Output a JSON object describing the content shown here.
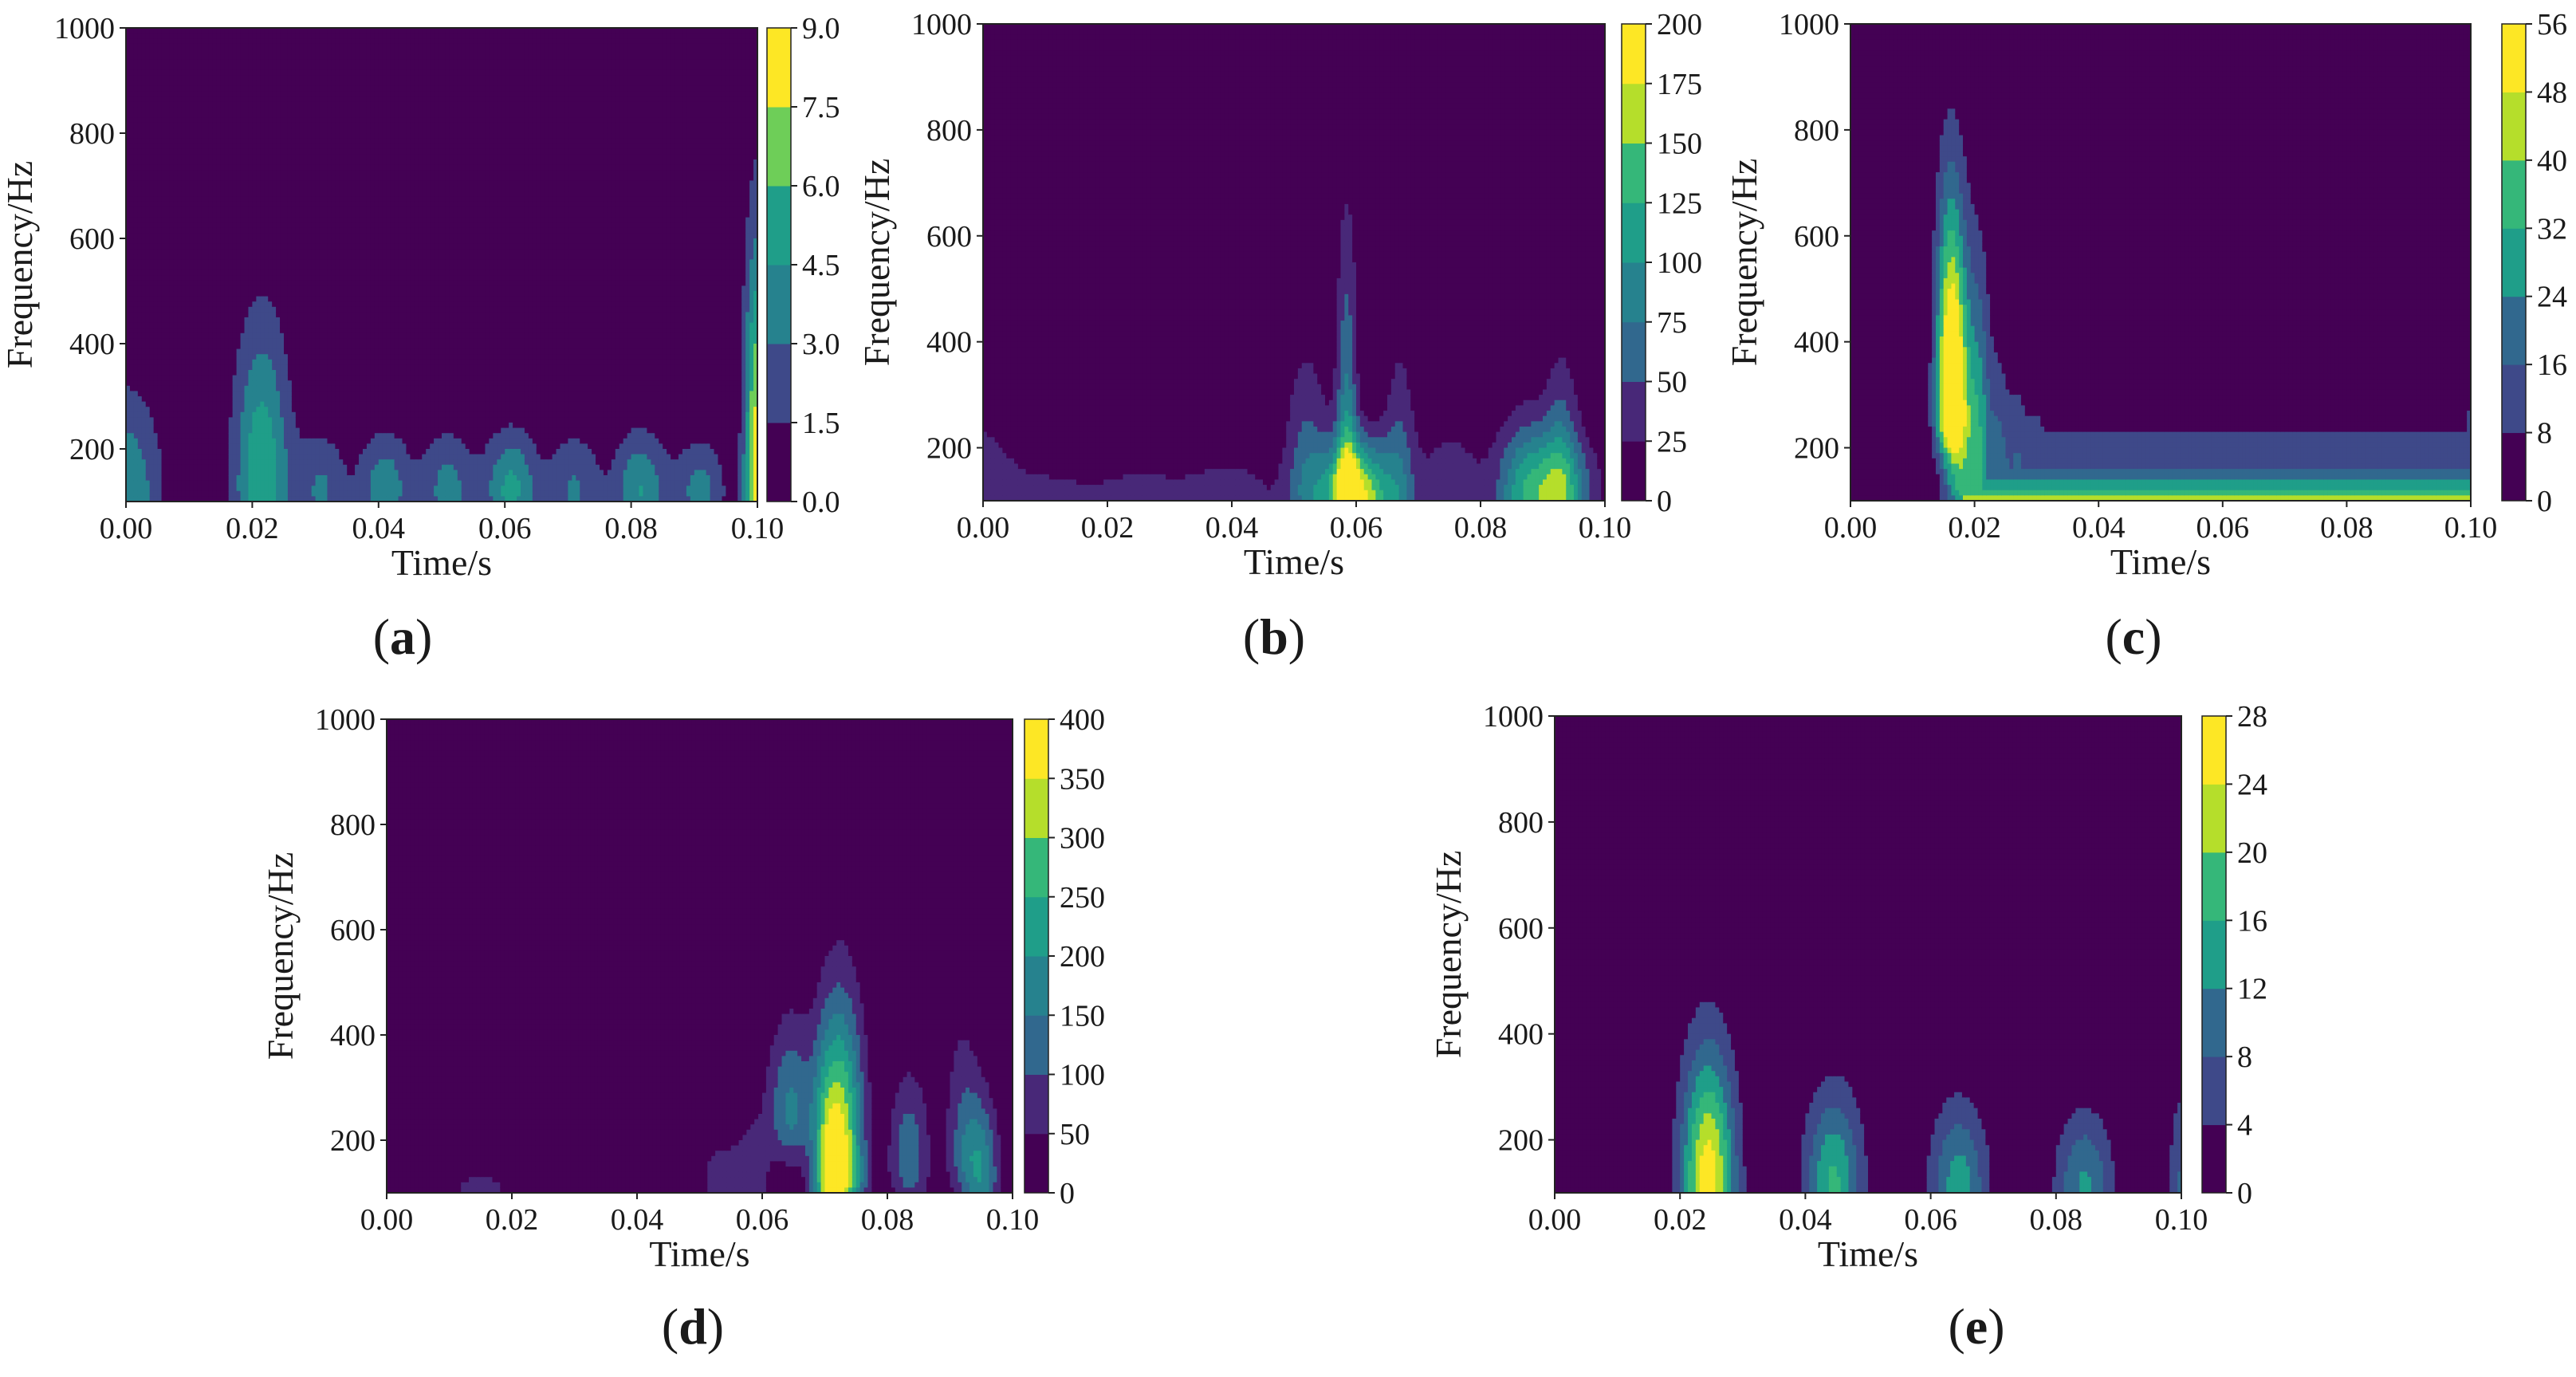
{
  "figure": {
    "panels": [
      "a",
      "b",
      "c",
      "d",
      "e"
    ]
  },
  "colormap": [
    "#440154",
    "#482878",
    "#3e4989",
    "#31688e",
    "#26828e",
    "#1f9e89",
    "#35b779",
    "#6ece58",
    "#b5de2b",
    "#fde725"
  ],
  "chart_data": [
    {
      "id": "a",
      "type": "heatmap",
      "subtype": "filled-contour time-frequency map",
      "panel_label": "a",
      "xlabel": "Time/s",
      "ylabel": "Frequency/Hz",
      "xlim": [
        0,
        0.1
      ],
      "ylim": [
        100,
        1000
      ],
      "xticks": [
        "0.00",
        "0.02",
        "0.04",
        "0.06",
        "0.08",
        "0.10"
      ],
      "yticks": [
        "200",
        "400",
        "600",
        "800",
        "1000"
      ],
      "colorbar": {
        "min": 0,
        "max": 9,
        "ticks": [
          "0.0",
          "1.5",
          "3.0",
          "4.5",
          "6.0",
          "7.5",
          "9.0"
        ],
        "levels": 6
      },
      "peaks": [
        {
          "t": 0.0,
          "f": 100,
          "w": 0.004,
          "h": 0.5,
          "ext": 480
        },
        {
          "t": 0.0215,
          "f": 130,
          "w": 0.0032,
          "h": 0.65,
          "ext": 700
        },
        {
          "t": 0.031,
          "f": 120,
          "w": 0.0028,
          "h": 0.35,
          "ext": 330
        },
        {
          "t": 0.041,
          "f": 120,
          "w": 0.003,
          "h": 0.45,
          "ext": 330
        },
        {
          "t": 0.051,
          "f": 120,
          "w": 0.003,
          "h": 0.4,
          "ext": 330
        },
        {
          "t": 0.061,
          "f": 120,
          "w": 0.003,
          "h": 0.55,
          "ext": 330
        },
        {
          "t": 0.071,
          "f": 120,
          "w": 0.003,
          "h": 0.35,
          "ext": 330
        },
        {
          "t": 0.0815,
          "f": 120,
          "w": 0.003,
          "h": 0.5,
          "ext": 330
        },
        {
          "t": 0.091,
          "f": 120,
          "w": 0.0028,
          "h": 0.4,
          "ext": 300
        },
        {
          "t": 0.1,
          "f": 120,
          "w": 0.0015,
          "h": 0.95,
          "ext": 1000
        }
      ]
    },
    {
      "id": "b",
      "type": "heatmap",
      "subtype": "filled-contour time-frequency map",
      "panel_label": "b",
      "xlabel": "Time/s",
      "ylabel": "Frequency/Hz",
      "xlim": [
        0,
        0.1
      ],
      "ylim": [
        100,
        1000
      ],
      "xticks": [
        "0.00",
        "0.02",
        "0.04",
        "0.06",
        "0.08",
        "0.10"
      ],
      "yticks": [
        "200",
        "400",
        "600",
        "800",
        "1000"
      ],
      "colorbar": {
        "min": 0,
        "max": 200,
        "ticks": [
          "0",
          "25",
          "50",
          "75",
          "100",
          "125",
          "150",
          "175",
          "200"
        ],
        "levels": 8
      },
      "peaks": [
        {
          "t": 0.0,
          "f": 120,
          "w": 0.004,
          "h": 0.2,
          "ext": 400
        },
        {
          "t": 0.01,
          "f": 110,
          "w": 0.006,
          "h": 0.15,
          "ext": 230
        },
        {
          "t": 0.025,
          "f": 110,
          "w": 0.006,
          "h": 0.15,
          "ext": 250
        },
        {
          "t": 0.04,
          "f": 110,
          "w": 0.006,
          "h": 0.18,
          "ext": 260
        },
        {
          "t": 0.052,
          "f": 120,
          "w": 0.0025,
          "h": 0.3,
          "ext": 600
        },
        {
          "t": 0.0585,
          "f": 120,
          "w": 0.0012,
          "h": 0.45,
          "ext": 1000
        },
        {
          "t": 0.06,
          "f": 105,
          "w": 0.004,
          "h": 0.95,
          "ext": 300
        },
        {
          "t": 0.067,
          "f": 120,
          "w": 0.0018,
          "h": 0.25,
          "ext": 650
        },
        {
          "t": 0.075,
          "f": 110,
          "w": 0.004,
          "h": 0.2,
          "ext": 380
        },
        {
          "t": 0.087,
          "f": 110,
          "w": 0.003,
          "h": 0.25,
          "ext": 420
        },
        {
          "t": 0.091,
          "f": 110,
          "w": 0.005,
          "h": 0.55,
          "ext": 320
        },
        {
          "t": 0.093,
          "f": 120,
          "w": 0.002,
          "h": 0.3,
          "ext": 600
        }
      ]
    },
    {
      "id": "c",
      "type": "heatmap",
      "subtype": "filled-contour time-frequency map",
      "panel_label": "c",
      "xlabel": "Time/s",
      "ylabel": "Frequency/Hz",
      "xlim": [
        0,
        0.1
      ],
      "ylim": [
        100,
        1000
      ],
      "xticks": [
        "0.00",
        "0.02",
        "0.04",
        "0.06",
        "0.08",
        "0.10"
      ],
      "yticks": [
        "200",
        "400",
        "600",
        "800",
        "1000"
      ],
      "colorbar": {
        "min": 0,
        "max": 56,
        "ticks": [
          "0",
          "8",
          "16",
          "24",
          "32",
          "40",
          "48",
          "56"
        ],
        "levels": 7
      },
      "peaks": [
        {
          "t": 0.016,
          "f": 270,
          "w": 0.0016,
          "h": 0.98,
          "ext": 1000
        },
        {
          "t": 0.018,
          "f": 140,
          "w": 0.002,
          "h": 0.6,
          "ext": 900
        },
        {
          "t": 0.021,
          "f": 120,
          "w": 0.0012,
          "h": 0.4,
          "ext": 840
        },
        {
          "t": 0.024,
          "f": 120,
          "w": 0.0012,
          "h": 0.35,
          "ext": 560
        },
        {
          "t": 0.027,
          "f": 120,
          "w": 0.0012,
          "h": 0.3,
          "ext": 480
        },
        {
          "t": 0.03,
          "f": 120,
          "w": 0.0012,
          "h": 0.28,
          "ext": 420
        },
        {
          "t": 0.033,
          "f": 120,
          "w": 0.0012,
          "h": 0.25,
          "ext": 380
        },
        {
          "t": 0.036,
          "f": 120,
          "w": 0.0012,
          "h": 0.25,
          "ext": 360
        },
        {
          "t": 0.039,
          "f": 120,
          "w": 0.0012,
          "h": 0.25,
          "ext": 330
        },
        {
          "t": 0.1,
          "f": 120,
          "w": 0.001,
          "h": 0.3,
          "ext": 450
        }
      ],
      "band": {
        "t_start": 0.018,
        "levels": [
          {
            "f": 300,
            "h": 0.2
          },
          {
            "f": 200,
            "h": 0.35
          },
          {
            "f": 140,
            "h": 0.5
          }
        ]
      }
    },
    {
      "id": "d",
      "type": "heatmap",
      "subtype": "filled-contour time-frequency map",
      "panel_label": "d",
      "xlabel": "Time/s",
      "ylabel": "Frequency/Hz",
      "xlim": [
        0,
        0.1
      ],
      "ylim": [
        100,
        1000
      ],
      "xticks": [
        "0.00",
        "0.02",
        "0.04",
        "0.06",
        "0.08",
        "0.10"
      ],
      "yticks": [
        "200",
        "400",
        "600",
        "800",
        "1000"
      ],
      "colorbar": {
        "min": 0,
        "max": 400,
        "ticks": [
          "0",
          "50",
          "100",
          "150",
          "200",
          "250",
          "300",
          "350",
          "400"
        ],
        "levels": 8
      },
      "peaks": [
        {
          "t": 0.015,
          "f": 110,
          "w": 0.005,
          "h": 0.15,
          "ext": 180
        },
        {
          "t": 0.053,
          "f": 120,
          "w": 0.002,
          "h": 0.2,
          "ext": 250
        },
        {
          "t": 0.058,
          "f": 110,
          "w": 0.0025,
          "h": 0.2,
          "ext": 380
        },
        {
          "t": 0.0645,
          "f": 250,
          "w": 0.0025,
          "h": 0.4,
          "ext": 580
        },
        {
          "t": 0.0725,
          "f": 130,
          "w": 0.0025,
          "h": 0.98,
          "ext": 700
        },
        {
          "t": 0.07,
          "f": 120,
          "w": 0.0015,
          "h": 0.3,
          "ext": 580
        },
        {
          "t": 0.0835,
          "f": 160,
          "w": 0.0022,
          "h": 0.35,
          "ext": 460
        },
        {
          "t": 0.092,
          "f": 180,
          "w": 0.002,
          "h": 0.25,
          "ext": 630
        },
        {
          "t": 0.095,
          "f": 130,
          "w": 0.002,
          "h": 0.45,
          "ext": 400
        }
      ]
    },
    {
      "id": "e",
      "type": "heatmap",
      "subtype": "filled-contour time-frequency map",
      "panel_label": "e",
      "xlabel": "Time/s",
      "ylabel": "Frequency/Hz",
      "xlim": [
        0,
        0.1
      ],
      "ylim": [
        100,
        1000
      ],
      "xticks": [
        "0.00",
        "0.02",
        "0.04",
        "0.06",
        "0.08",
        "0.10"
      ],
      "yticks": [
        "200",
        "400",
        "600",
        "800",
        "1000"
      ],
      "colorbar": {
        "min": 0,
        "max": 28,
        "ticks": [
          "0",
          "4",
          "8",
          "12",
          "16",
          "20",
          "24",
          "28"
        ],
        "levels": 7
      },
      "peaks": [
        {
          "t": 0.0245,
          "f": 110,
          "w": 0.003,
          "h": 0.96,
          "ext": 580
        },
        {
          "t": 0.0445,
          "f": 110,
          "w": 0.0032,
          "h": 0.6,
          "ext": 440
        },
        {
          "t": 0.0645,
          "f": 110,
          "w": 0.0032,
          "h": 0.5,
          "ext": 400
        },
        {
          "t": 0.0845,
          "f": 110,
          "w": 0.0032,
          "h": 0.45,
          "ext": 370
        },
        {
          "t": 0.1,
          "f": 110,
          "w": 0.0015,
          "h": 0.3,
          "ext": 450
        }
      ]
    }
  ]
}
